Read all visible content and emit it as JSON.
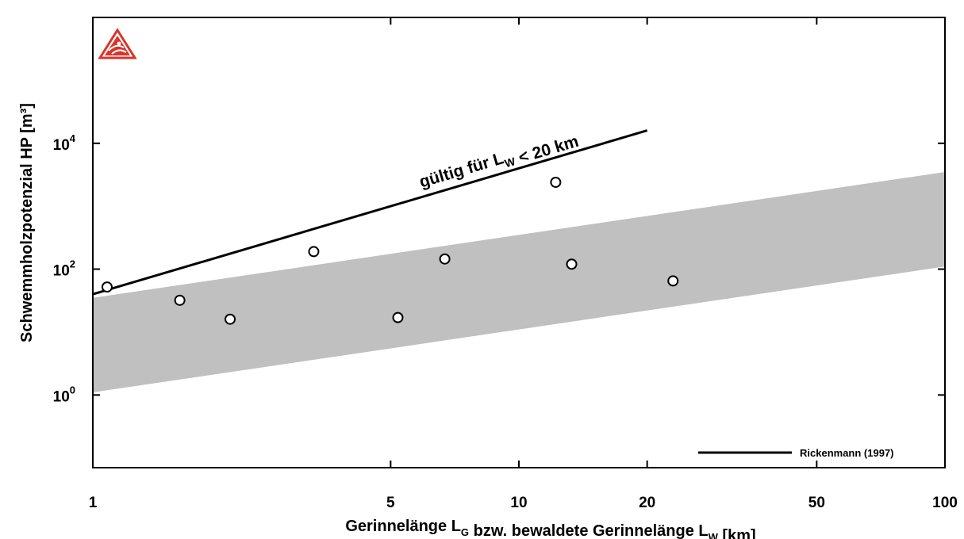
{
  "chart_data": {
    "type": "scatter",
    "x_scale": "log",
    "y_scale": "log",
    "xlim": [
      1,
      100
    ],
    "ylim": [
      0.07,
      1000000
    ],
    "x_ticks": [
      1,
      5,
      10,
      20,
      50,
      100
    ],
    "x_tick_labels": [
      "1",
      "5",
      "10",
      "20",
      "50",
      "100"
    ],
    "y_ticks": [
      1,
      100,
      10000
    ],
    "y_tick_labels": [
      {
        "base": "10",
        "exp": "0"
      },
      {
        "base": "10",
        "exp": "2"
      },
      {
        "base": "10",
        "exp": "4"
      }
    ],
    "xlabel": {
      "parts": [
        {
          "text": "Gerinnelänge L",
          "sub": false
        },
        {
          "text": "G",
          "sub": true
        },
        {
          "text": " bzw. bewaldete Gerinnelänge L",
          "sub": false
        },
        {
          "text": "W",
          "sub": true
        },
        {
          "text": " [km]",
          "sub": false
        }
      ]
    },
    "ylabel": "Schwemmholzpotenzial HP [m³]",
    "points": [
      {
        "x": 1.08,
        "y": 52
      },
      {
        "x": 1.6,
        "y": 32
      },
      {
        "x": 2.1,
        "y": 16
      },
      {
        "x": 3.3,
        "y": 190
      },
      {
        "x": 5.2,
        "y": 17
      },
      {
        "x": 6.7,
        "y": 145
      },
      {
        "x": 12.2,
        "y": 2400
      },
      {
        "x": 13.3,
        "y": 120
      },
      {
        "x": 23,
        "y": 65
      }
    ],
    "band": {
      "x": [
        1,
        100
      ],
      "lower": [
        1.1,
        110
      ],
      "upper": [
        35,
        3500
      ]
    },
    "line": {
      "x": [
        1,
        20
      ],
      "y": [
        40,
        16000
      ]
    },
    "annotation": {
      "parts": [
        {
          "text": "gültig für L",
          "sub": false
        },
        {
          "text": "W",
          "sub": true
        },
        {
          "text": " < 20 km",
          "sub": false
        }
      ]
    },
    "legend": {
      "position": "bottom-right",
      "entries": [
        {
          "label": "Rickenmann (1997)",
          "style": "line"
        }
      ]
    },
    "colors": {
      "band": "#c0c0c0",
      "line": "#000000",
      "marker_edge": "#000000",
      "marker_face": "#ffffff",
      "logo": "#d9342b"
    },
    "logo_icon": "warning-triangle-logo"
  }
}
